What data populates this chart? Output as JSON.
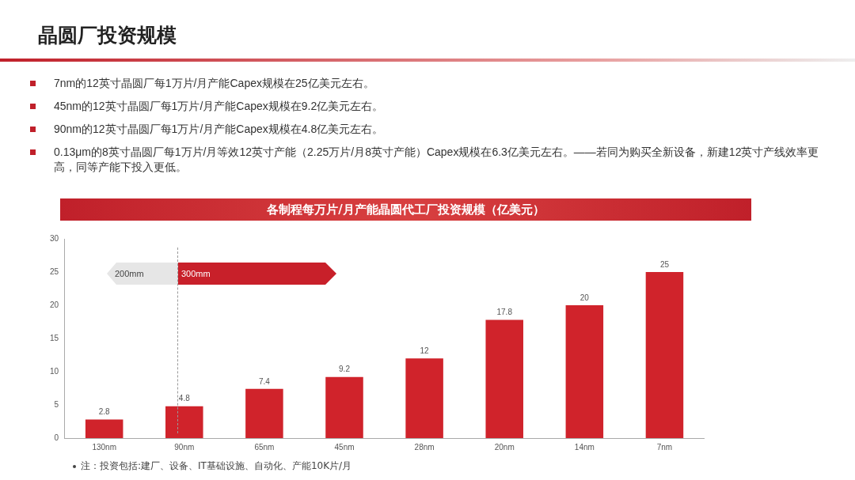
{
  "chart_data": {
    "type": "bar",
    "title": "晶圆厂投资规模",
    "subtitle": "各制程每万片/月产能晶圆代工厂投资规模（亿美元）",
    "categories": [
      "130nm",
      "90nm",
      "65nm",
      "45nm",
      "28nm",
      "20nm",
      "14nm",
      "7nm"
    ],
    "values": [
      2.8,
      4.8,
      7.4,
      9.2,
      12,
      17.8,
      20,
      25
    ],
    "color": "#d0232b",
    "ylim": [
      0,
      30
    ],
    "yticks": [
      0,
      5,
      10,
      15,
      20,
      25,
      30
    ],
    "grid": false,
    "legend": false,
    "data_labels": true,
    "annotations": [
      "7nm的12英寸晶圆厂每1万片/月产能Capex规模在25亿美元左右。",
      "45nm的12英寸晶圆厂每1万片/月产能Capex规模在9.2亿美元左右。",
      "90nm的12英寸晶圆厂每1万片/月产能Capex规模在4.8亿美元左右。",
      "0.13μm的8英寸晶圆厂每1万片/月等效12英寸产能（2.25万片/月8英寸产能）Capex规模在6.3亿美元左右。——若同为购买全新设备，新建12英寸产线效率更高，同等产能下投入更低。",
      "200mm",
      "300mm",
      "注：投资包括:建厂、设备、IT基础设施、自动化、产能10K片/月"
    ]
  }
}
